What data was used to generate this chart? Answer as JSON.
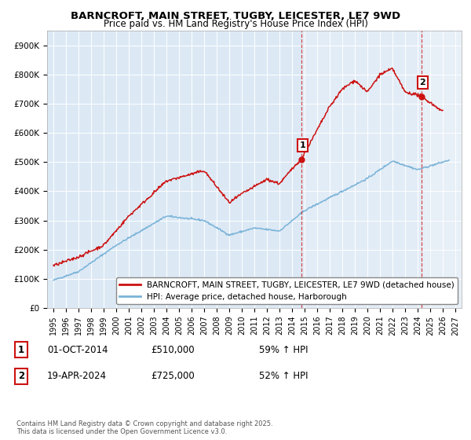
{
  "title": "BARNCROFT, MAIN STREET, TUGBY, LEICESTER, LE7 9WD",
  "subtitle": "Price paid vs. HM Land Registry's House Price Index (HPI)",
  "plot_bg_color": "#dce9f5",
  "hatch_color": "#c5d8ed",
  "line1_color": "#cc1111",
  "line2_color": "#7ab3d8",
  "sale1_x": 2014.75,
  "sale1_y": 510000,
  "sale2_x": 2024.3,
  "sale2_y": 725000,
  "vline_color": "#cc1111",
  "ylim": [
    0,
    950000
  ],
  "xlim": [
    1994.5,
    2027.5
  ],
  "yticks": [
    0,
    100000,
    200000,
    300000,
    400000,
    500000,
    600000,
    700000,
    800000,
    900000
  ],
  "ytick_labels": [
    "£0",
    "£100K",
    "£200K",
    "£300K",
    "£400K",
    "£500K",
    "£600K",
    "£700K",
    "£800K",
    "£900K"
  ],
  "xtick_years": [
    1995,
    1996,
    1997,
    1998,
    1999,
    2000,
    2001,
    2002,
    2003,
    2004,
    2005,
    2006,
    2007,
    2008,
    2009,
    2010,
    2011,
    2012,
    2013,
    2014,
    2015,
    2016,
    2017,
    2018,
    2019,
    2020,
    2021,
    2022,
    2023,
    2024,
    2025,
    2026,
    2027
  ],
  "legend_label1": "BARNCROFT, MAIN STREET, TUGBY, LEICESTER, LE7 9WD (detached house)",
  "legend_label2": "HPI: Average price, detached house, Harborough",
  "annotation1_date": "01-OCT-2014",
  "annotation1_price": "£510,000",
  "annotation1_hpi": "59% ↑ HPI",
  "annotation2_date": "19-APR-2024",
  "annotation2_price": "£725,000",
  "annotation2_hpi": "52% ↑ HPI",
  "footnote": "Contains HM Land Registry data © Crown copyright and database right 2025.\nThis data is licensed under the Open Government Licence v3.0."
}
